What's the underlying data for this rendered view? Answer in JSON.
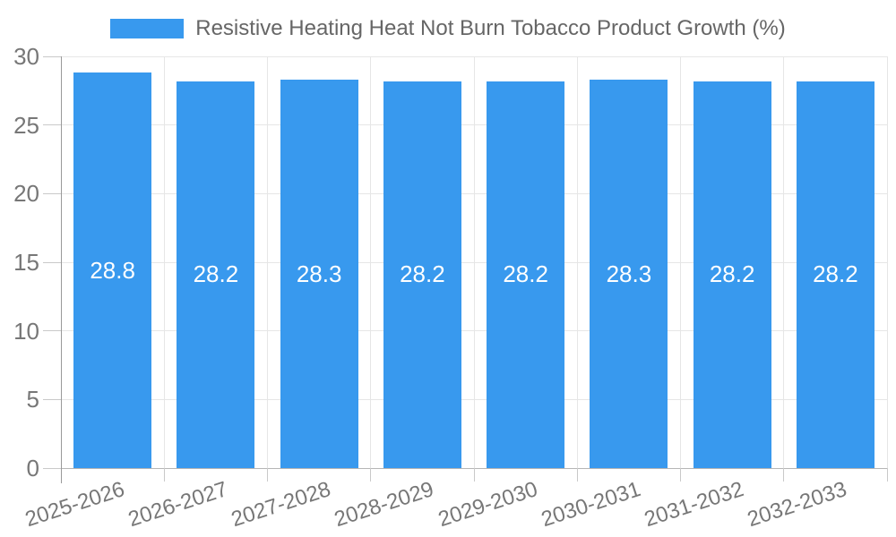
{
  "chart_data": {
    "type": "bar",
    "title": "Resistive Heating Heat Not Burn Tobacco Product Growth (%)",
    "categories": [
      "2025-2026",
      "2026-2027",
      "2027-2028",
      "2028-2029",
      "2029-2030",
      "2030-2031",
      "2031-2032",
      "2032-2033"
    ],
    "values": [
      28.8,
      28.2,
      28.3,
      28.2,
      28.2,
      28.3,
      28.2,
      28.2
    ],
    "xlabel": "",
    "ylabel": "",
    "ylim": [
      0,
      30
    ],
    "yticks": [
      0,
      5,
      10,
      15,
      20,
      25,
      30
    ],
    "grid": true,
    "legend_position": "top-center",
    "bar_color": "#3899ee",
    "value_label_color": "#ffffff",
    "tick_label_color": "#777777",
    "title_color": "#666666",
    "gridline_color": "#e6e6e6",
    "axis_line_color": "#999999",
    "zero_line_color": "#b5b5b5"
  }
}
